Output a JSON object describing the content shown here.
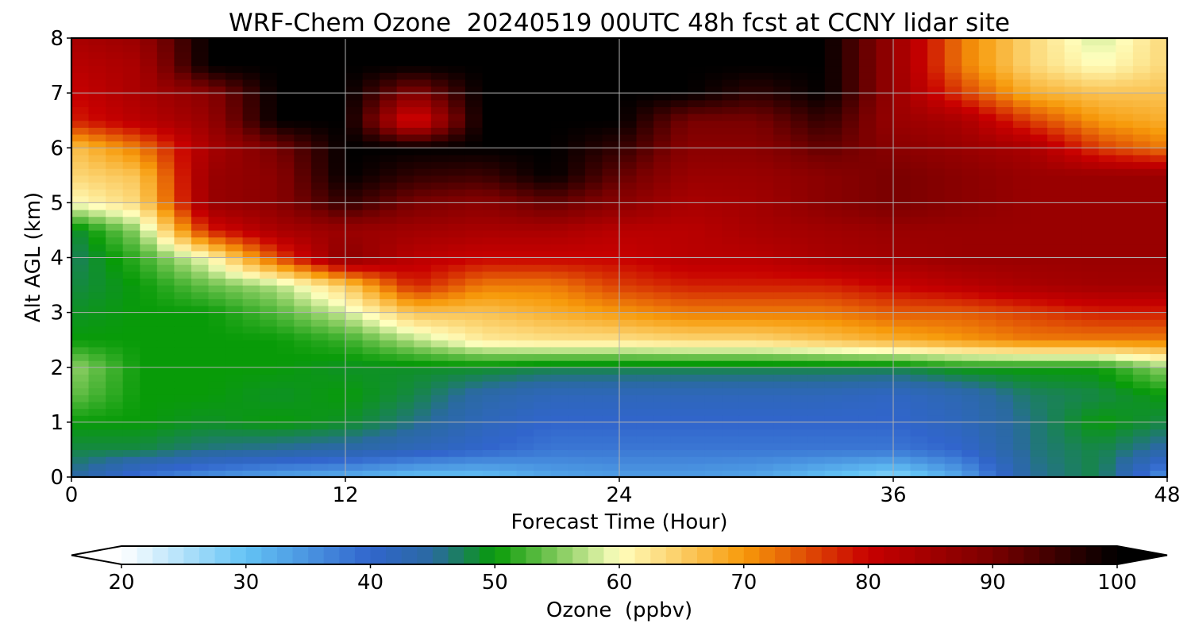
{
  "chart_data": {
    "type": "heatmap",
    "title": "WRF-Chem Ozone  20240519 00UTC 48h fcst at CCNY lidar site",
    "xlabel": "Forecast Time (Hour)",
    "ylabel": "Alt AGL (km)",
    "xlim": [
      0,
      48
    ],
    "ylim": [
      0,
      8
    ],
    "xticks": [
      0,
      12,
      24,
      36,
      48
    ],
    "yticks": [
      0,
      1,
      2,
      3,
      4,
      5,
      6,
      7,
      8
    ],
    "grid": true,
    "x": [
      0,
      3,
      6,
      9,
      12,
      15,
      18,
      21,
      24,
      27,
      30,
      33,
      36,
      39,
      42,
      45,
      48
    ],
    "y": [
      0,
      0.5,
      1,
      1.5,
      2,
      2.5,
      3,
      3.5,
      4,
      4.5,
      5,
      5.5,
      6,
      6.5,
      7,
      7.5,
      8
    ],
    "z": [
      [
        45,
        38,
        35,
        33,
        32,
        30,
        30,
        33,
        34,
        34,
        33,
        30,
        27,
        33,
        45,
        48,
        34
      ],
      [
        48,
        48,
        46,
        45,
        44,
        42,
        40,
        38,
        38,
        38,
        38,
        38,
        38,
        40,
        46,
        48,
        44
      ],
      [
        50,
        50,
        49,
        50,
        49,
        46,
        42,
        40,
        40,
        40,
        40,
        40,
        40,
        42,
        46,
        50,
        48
      ],
      [
        54,
        50,
        50,
        49,
        50,
        48,
        44,
        42,
        42,
        42,
        42,
        42,
        41,
        43,
        47,
        48,
        50
      ],
      [
        56,
        50,
        50,
        50,
        49,
        49,
        49,
        48,
        48,
        48,
        48,
        48,
        48,
        50,
        50,
        50,
        56
      ],
      [
        50,
        50,
        50,
        50,
        52,
        57,
        62,
        63,
        63,
        64,
        64,
        66,
        68,
        70,
        72,
        72,
        72
      ],
      [
        49,
        50,
        50,
        53,
        58,
        66,
        66,
        68,
        70,
        72,
        72,
        72,
        74,
        74,
        76,
        78,
        78
      ],
      [
        48,
        50,
        54,
        57,
        65,
        78,
        72,
        72,
        76,
        78,
        78,
        78,
        80,
        82,
        84,
        85,
        85
      ],
      [
        47,
        52,
        60,
        75,
        88,
        82,
        80,
        80,
        80,
        82,
        82,
        84,
        85,
        86,
        86,
        86,
        86
      ],
      [
        48,
        56,
        78,
        84,
        86,
        85,
        84,
        84,
        82,
        82,
        84,
        85,
        86,
        86,
        86,
        86,
        86
      ],
      [
        60,
        64,
        86,
        88,
        96,
        90,
        88,
        92,
        88,
        84,
        85,
        88,
        90,
        88,
        86,
        86,
        86
      ],
      [
        64,
        66,
        86,
        88,
        100,
        96,
        95,
        100,
        92,
        86,
        86,
        88,
        90,
        88,
        86,
        86,
        86
      ],
      [
        66,
        72,
        84,
        90,
        100,
        100,
        100,
        100,
        96,
        88,
        88,
        92,
        88,
        86,
        84,
        76,
        72
      ],
      [
        78,
        82,
        86,
        100,
        100,
        76,
        100,
        100,
        100,
        90,
        90,
        96,
        86,
        84,
        76,
        70,
        68
      ],
      [
        80,
        84,
        88,
        100,
        100,
        88,
        100,
        100,
        100,
        100,
        96,
        100,
        86,
        76,
        68,
        66,
        66
      ],
      [
        82,
        84,
        100,
        100,
        100,
        100,
        100,
        100,
        100,
        100,
        100,
        100,
        86,
        72,
        64,
        60,
        64
      ],
      [
        84,
        86,
        100,
        100,
        100,
        100,
        100,
        100,
        100,
        100,
        100,
        100,
        86,
        72,
        64,
        58,
        64
      ]
    ],
    "colorbar": {
      "label": "Ozone  (ppbv)",
      "min": 20,
      "max": 100,
      "ticks": [
        20,
        30,
        40,
        50,
        60,
        70,
        80,
        90,
        100
      ],
      "extend": "both",
      "stops": [
        {
          "v": 20,
          "c": "#ffffff"
        },
        {
          "v": 30,
          "c": "#63c3f5"
        },
        {
          "v": 40,
          "c": "#3165cc"
        },
        {
          "v": 45,
          "c": "#2a6aa0"
        },
        {
          "v": 50,
          "c": "#089b08"
        },
        {
          "v": 55,
          "c": "#7fc95a"
        },
        {
          "v": 60,
          "c": "#ffffbe"
        },
        {
          "v": 70,
          "c": "#f79a0a"
        },
        {
          "v": 80,
          "c": "#c80000"
        },
        {
          "v": 90,
          "c": "#7a0000"
        },
        {
          "v": 100,
          "c": "#000000"
        }
      ],
      "under_color": "#ffffff",
      "over_color": "#000000"
    }
  }
}
